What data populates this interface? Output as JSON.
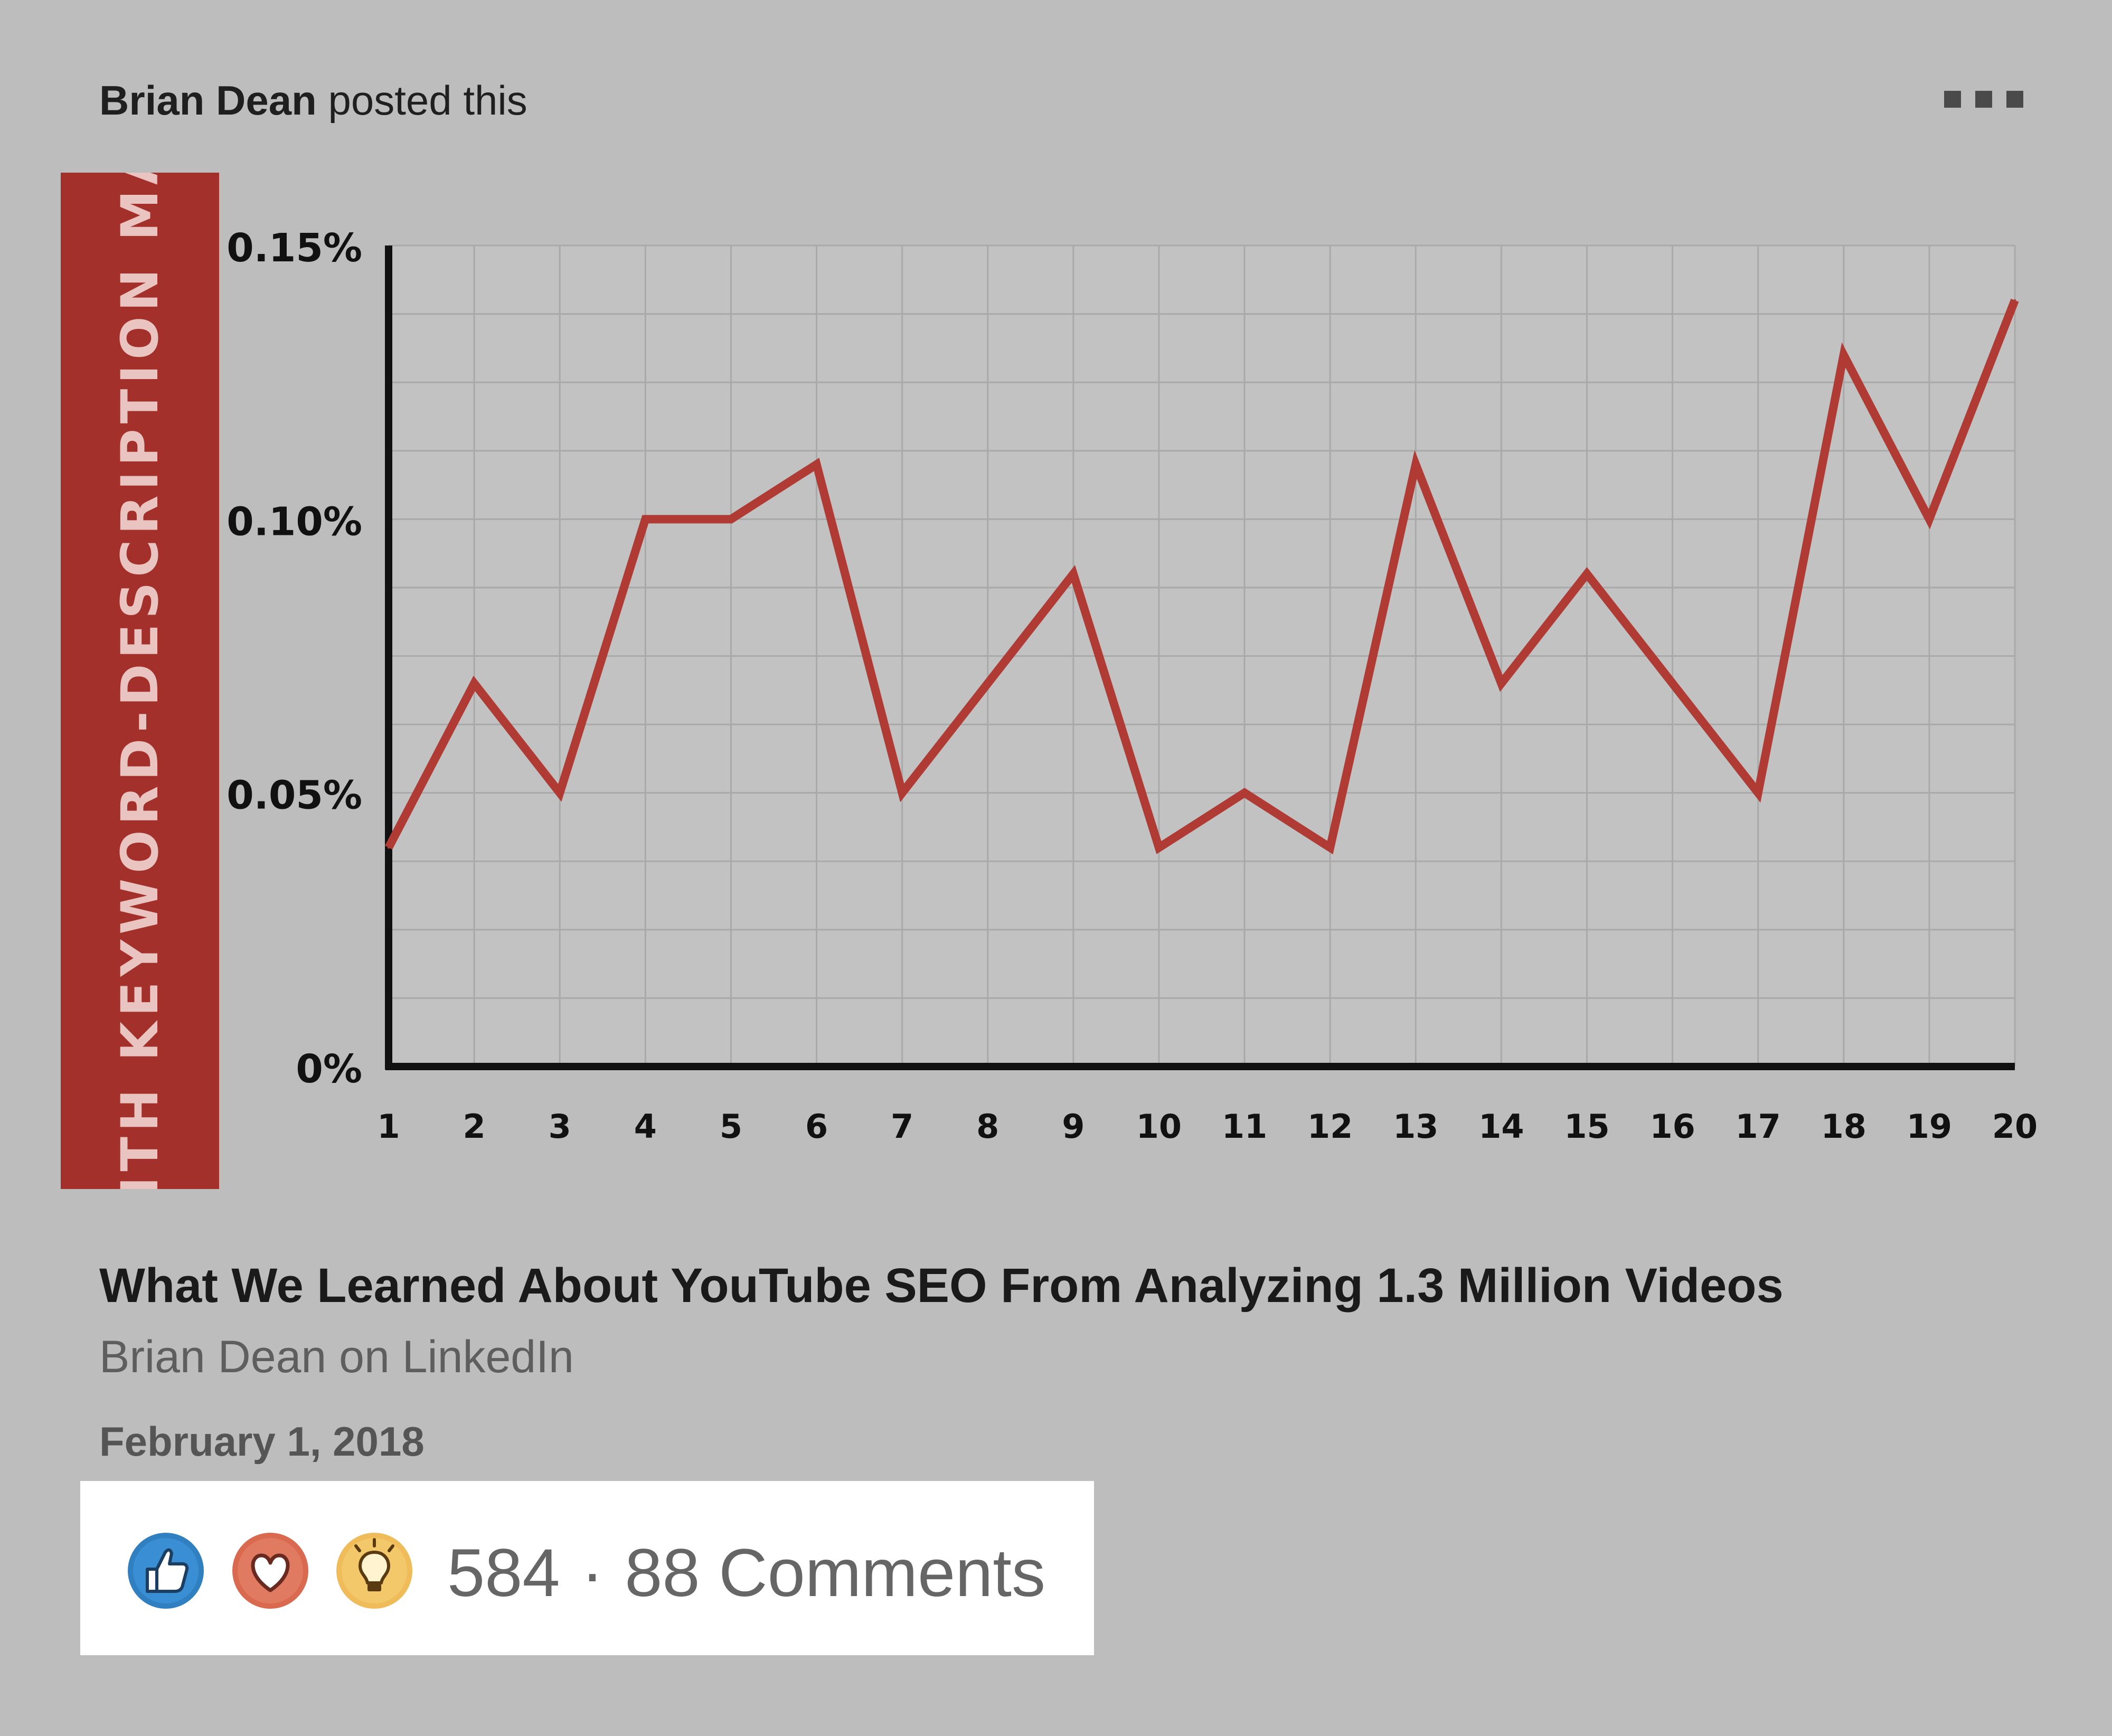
{
  "post": {
    "author": "Brian Dean",
    "action": "posted this",
    "more_icon": "more-horizontal-icon"
  },
  "banner": {
    "text": "WITH KEYWORD-DESCRIPTION MAT",
    "color": "#a3302b"
  },
  "chart_data": {
    "type": "line",
    "title": "",
    "xlabel": "",
    "ylabel": "",
    "x": [
      1,
      2,
      3,
      4,
      5,
      6,
      7,
      8,
      9,
      10,
      11,
      12,
      13,
      14,
      15,
      16,
      17,
      18,
      19,
      20
    ],
    "series": [
      {
        "color": "#b03a34",
        "values": [
          0.04,
          0.07,
          0.05,
          0.1,
          0.1,
          0.11,
          0.05,
          0.07,
          0.09,
          0.04,
          0.05,
          0.04,
          0.11,
          0.07,
          0.09,
          0.07,
          0.05,
          0.13,
          0.1,
          0.14
        ]
      }
    ],
    "ylim": [
      0,
      0.15
    ],
    "yticks": [
      0,
      0.05,
      0.1,
      0.15
    ],
    "ytick_labels": [
      "0%",
      "0.05%",
      "0.10%",
      "0.15%"
    ],
    "xtick_labels": [
      "1",
      "2",
      "3",
      "4",
      "5",
      "6",
      "7",
      "8",
      "9",
      "10",
      "11",
      "12",
      "13",
      "14",
      "15",
      "16",
      "17",
      "18",
      "19",
      "20"
    ],
    "grid": true,
    "legend": "none"
  },
  "article": {
    "title": "What We Learned About YouTube SEO From Analyzing 1.3 Million Videos",
    "source": "Brian Dean on LinkedIn",
    "date": "February 1, 2018"
  },
  "reactions": {
    "icons": [
      "like-icon",
      "love-icon",
      "insightful-icon"
    ],
    "count": "584",
    "separator": "·",
    "comments": "88 Comments"
  },
  "colors": {
    "background": "#bdbdbd",
    "like": "#2f7fc1",
    "love": "#d9694f",
    "insightful": "#efbc59"
  }
}
